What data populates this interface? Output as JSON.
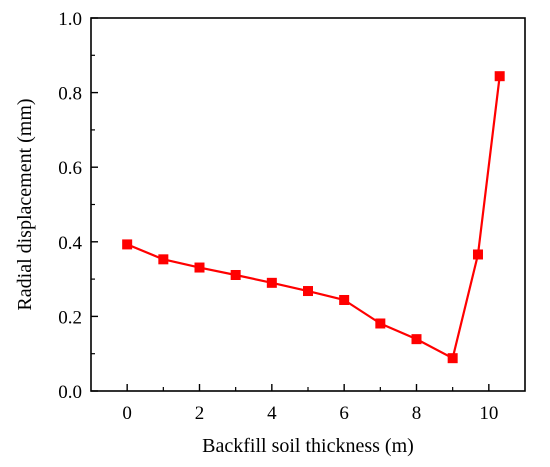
{
  "chart_data": {
    "type": "line",
    "xlabel": "Backfill soil thickness (m)",
    "ylabel": "Radial displacement (mm)",
    "xlim": [
      -1,
      11
    ],
    "ylim": [
      0,
      1.0
    ],
    "xticks": [
      0,
      2,
      4,
      6,
      8,
      10
    ],
    "yticks": [
      0.0,
      0.2,
      0.4,
      0.6,
      0.8,
      1.0
    ],
    "xtick_labels": [
      "0",
      "2",
      "4",
      "6",
      "8",
      "10"
    ],
    "ytick_labels": [
      "0.0",
      "0.2",
      "0.4",
      "0.6",
      "0.8",
      "1.0"
    ],
    "grid": false,
    "legend": "none",
    "series": [
      {
        "color": "#ff0000",
        "marker": "square",
        "x": [
          0,
          1,
          2,
          3,
          4,
          5,
          6,
          7,
          8,
          9,
          9.7,
          10.3
        ],
        "y": [
          0.393,
          0.353,
          0.331,
          0.311,
          0.29,
          0.268,
          0.244,
          0.181,
          0.139,
          0.088,
          0.366,
          0.844
        ]
      }
    ]
  }
}
